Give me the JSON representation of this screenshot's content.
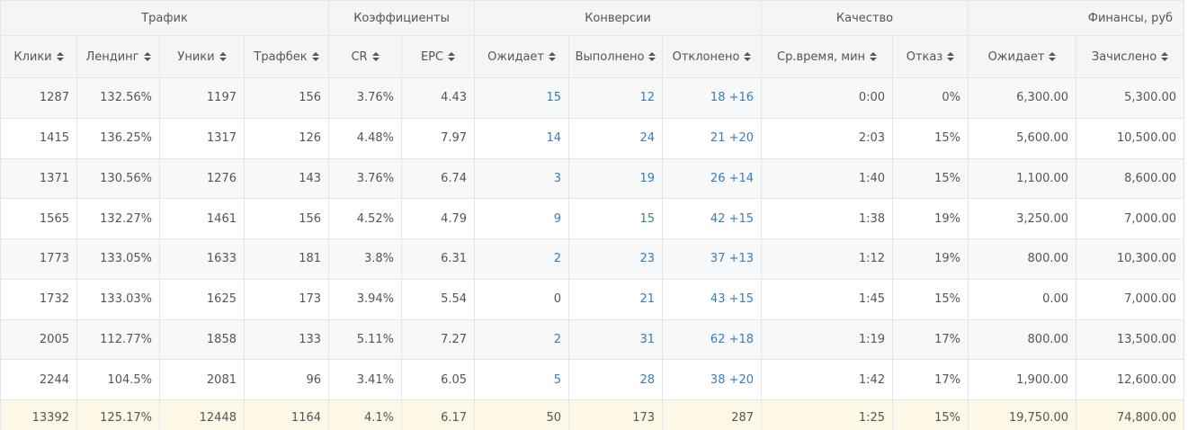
{
  "table": {
    "groups": [
      "Трафик",
      "Коэффициенты",
      "Конверсии",
      "Качество",
      "Финансы, руб"
    ],
    "columns": [
      "Клики",
      "Лендинг",
      "Уники",
      "Трафбек",
      "CR",
      "EPC",
      "Ожидает",
      "Выполнено",
      "Отклонено",
      "Ср.время, мин",
      "Отказ",
      "Ожидает",
      "Зачислено"
    ],
    "rows": [
      [
        "1287",
        "132.56%",
        "1197",
        "156",
        "3.76%",
        "4.43",
        "15",
        "12",
        "18 +16",
        "0:00",
        "0%",
        "6,300.00",
        "5,300.00"
      ],
      [
        "1415",
        "136.25%",
        "1317",
        "126",
        "4.48%",
        "7.97",
        "14",
        "24",
        "21 +20",
        "2:03",
        "15%",
        "5,600.00",
        "10,500.00"
      ],
      [
        "1371",
        "130.56%",
        "1276",
        "143",
        "3.76%",
        "6.74",
        "3",
        "19",
        "26 +14",
        "1:40",
        "15%",
        "1,100.00",
        "8,600.00"
      ],
      [
        "1565",
        "132.27%",
        "1461",
        "156",
        "4.52%",
        "4.79",
        "9",
        "15",
        "42 +15",
        "1:38",
        "19%",
        "3,250.00",
        "7,000.00"
      ],
      [
        "1773",
        "133.05%",
        "1633",
        "181",
        "3.8%",
        "6.31",
        "2",
        "23",
        "37 +13",
        "1:12",
        "19%",
        "800.00",
        "10,300.00"
      ],
      [
        "1732",
        "133.03%",
        "1625",
        "173",
        "3.94%",
        "5.54",
        "0",
        "21",
        "43 +15",
        "1:45",
        "15%",
        "0.00",
        "7,000.00"
      ],
      [
        "2005",
        "112.77%",
        "1858",
        "133",
        "5.11%",
        "7.27",
        "2",
        "31",
        "62 +18",
        "1:19",
        "17%",
        "800.00",
        "13,500.00"
      ],
      [
        "2244",
        "104.5%",
        "2081",
        "96",
        "3.41%",
        "6.05",
        "5",
        "28",
        "38 +20",
        "1:42",
        "17%",
        "1,900.00",
        "12,600.00"
      ]
    ],
    "total": [
      "13392",
      "125.17%",
      "12448",
      "1164",
      "4.1%",
      "6.17",
      "50",
      "173",
      "287",
      "1:25",
      "15%",
      "19,750.00",
      "74,800.00"
    ]
  }
}
